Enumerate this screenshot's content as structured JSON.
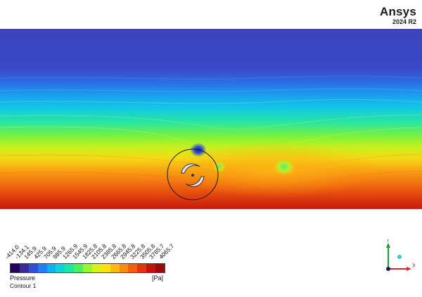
{
  "logo": {
    "brand": "Ansys",
    "version": "2024 R2"
  },
  "legend": {
    "variable": "Pressure",
    "unit": "[Pa]",
    "name": "Contour 1",
    "ticks": [
      "-414.0",
      "-134.1",
      "145.9",
      "425.9",
      "705.9",
      "985.9",
      "1265.9",
      "1545.9",
      "1825.8",
      "2105.8",
      "2385.8",
      "2665.8",
      "2945.8",
      "3225.8",
      "3505.8",
      "3785.7",
      "4065.7"
    ],
    "colors": [
      "#27005a",
      "#3a2a9c",
      "#2e4fd6",
      "#1f7ff0",
      "#12aef0",
      "#10d3d8",
      "#1ee4a4",
      "#4cef5e",
      "#98f42c",
      "#d6f21a",
      "#f7df14",
      "#fbb712",
      "#f98b12",
      "#f2600f",
      "#e0360c",
      "#c0140a",
      "#9a0a0a"
    ]
  },
  "triad": {
    "y_label": "Y",
    "x_label": "X"
  },
  "colors": {
    "low": "#3f48c0",
    "high": "#cc1a0c",
    "probe": "#1a1a1a",
    "axis_y": "#1f9a36",
    "axis_x": "#d12b2b",
    "axis_z": "#0a1a5a"
  }
}
